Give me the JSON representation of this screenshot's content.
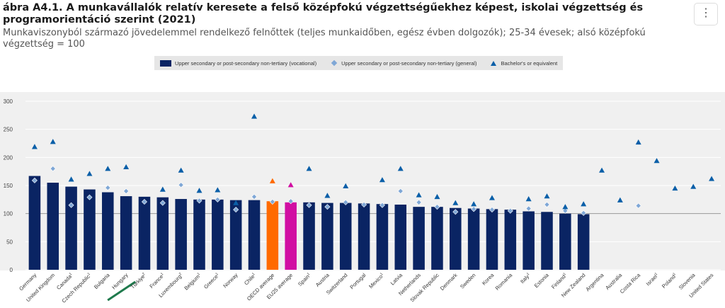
{
  "title": "ábra A4.1. A munkavállalók relatív keresete a felső középfokú végzettségűekhez képest, iskolai végzettség és programorientáció szerint (2021)",
  "subtitle": "Munkaviszonyból származó jövedelemmel rendelkező felnőttek (teljes munkaidőben, egész évben dolgozók); 25-34 évesek; alsó középfokú végzettség = 100",
  "menu_icon": "⋮",
  "chart_data": {
    "type": "bar",
    "ylim": [
      0,
      300
    ],
    "yticks": [
      0,
      50,
      100,
      150,
      200,
      250,
      300
    ],
    "reference_line": 100,
    "legend_position": "top",
    "highlight_colors": {
      "OECD average": "#ff6a00",
      "EU25 average": "#d10ea2"
    },
    "legend": [
      {
        "key": "voc",
        "label": "Upper secondary or post-secondary non-tertiary (vocational)",
        "color": "#0a2463",
        "marker": "bar"
      },
      {
        "key": "gen",
        "label": "Upper secondary or post-secondary non-tertiary (general)",
        "color": "#7fa7d6",
        "marker": "diamond"
      },
      {
        "key": "bach",
        "label": "Bachelor's or equivalent",
        "color": "#0a5fa8",
        "marker": "triangle"
      }
    ],
    "categories": [
      {
        "label": "Germany",
        "sup": "",
        "voc": 167,
        "gen": 159,
        "bach": 219
      },
      {
        "label": "United Kingdom",
        "sup": "",
        "voc": 155,
        "gen": 180,
        "bach": 228
      },
      {
        "label": "Canada",
        "sup": "1",
        "voc": 148,
        "gen": 115,
        "bach": 161
      },
      {
        "label": "Czech Republic",
        "sup": "1",
        "voc": 143,
        "gen": 129,
        "bach": 171
      },
      {
        "label": "Bulgaria",
        "sup": "",
        "voc": 138,
        "gen": 146,
        "bach": 180
      },
      {
        "label": "Hungary",
        "sup": "",
        "voc": 131,
        "gen": 140,
        "bach": 183
      },
      {
        "label": "Türkiye",
        "sup": "2",
        "voc": 130,
        "gen": 121,
        "bach": null
      },
      {
        "label": "France",
        "sup": "1",
        "voc": 129,
        "gen": 119,
        "bach": 143
      },
      {
        "label": "Luxembourg",
        "sup": "2",
        "voc": 126,
        "gen": 151,
        "bach": 177
      },
      {
        "label": "Belgium",
        "sup": "1",
        "voc": 125,
        "gen": 123,
        "bach": 141
      },
      {
        "label": "Greece",
        "sup": "1",
        "voc": 125,
        "gen": 125,
        "bach": 142
      },
      {
        "label": "Norway",
        "sup": "",
        "voc": 124,
        "gen": 107,
        "bach": 119
      },
      {
        "label": "Chile",
        "sup": "1",
        "voc": 124,
        "gen": 130,
        "bach": 273
      },
      {
        "label": "OECD average",
        "sup": "",
        "voc": 122,
        "gen": 121,
        "bach": 158
      },
      {
        "label": "EU25 average",
        "sup": "",
        "voc": 120,
        "gen": 122,
        "bach": 151
      },
      {
        "label": "Spain",
        "sup": "1",
        "voc": 120,
        "gen": 115,
        "bach": 180
      },
      {
        "label": "Austria",
        "sup": "",
        "voc": 119,
        "gen": 112,
        "bach": 132
      },
      {
        "label": "Switzerland",
        "sup": "",
        "voc": 119,
        "gen": 120,
        "bach": 149
      },
      {
        "label": "Portugal",
        "sup": "",
        "voc": 118,
        "gen": 116,
        "bach": null
      },
      {
        "label": "Mexico",
        "sup": "1",
        "voc": 117,
        "gen": 115,
        "bach": 160
      },
      {
        "label": "Latvia",
        "sup": "",
        "voc": 116,
        "gen": 140,
        "bach": 180
      },
      {
        "label": "Netherlands",
        "sup": "",
        "voc": 112,
        "gen": 120,
        "bach": 133
      },
      {
        "label": "Slovak Republic",
        "sup": "",
        "voc": 112,
        "gen": 112,
        "bach": 130
      },
      {
        "label": "Denmark",
        "sup": "",
        "voc": 110,
        "gen": 103,
        "bach": 119
      },
      {
        "label": "Sweden",
        "sup": "",
        "voc": 109,
        "gen": 108,
        "bach": 117
      },
      {
        "label": "Korea",
        "sup": "",
        "voc": 108,
        "gen": 107,
        "bach": 128
      },
      {
        "label": "Romania",
        "sup": "",
        "voc": 107,
        "gen": 105,
        "bach": null
      },
      {
        "label": "Italy",
        "sup": "1",
        "voc": 104,
        "gen": 109,
        "bach": 126
      },
      {
        "label": "Estonia",
        "sup": "",
        "voc": 103,
        "gen": 116,
        "bach": 131
      },
      {
        "label": "Finland",
        "sup": "1",
        "voc": 100,
        "gen": 105,
        "bach": 112
      },
      {
        "label": "New Zealand",
        "sup": "",
        "voc": 99,
        "gen": 101,
        "bach": 117
      },
      {
        "label": "Argentina",
        "sup": "",
        "voc": null,
        "gen": null,
        "bach": 177
      },
      {
        "label": "Australia",
        "sup": "",
        "voc": null,
        "gen": null,
        "bach": 124
      },
      {
        "label": "Costa Rica",
        "sup": "",
        "voc": null,
        "gen": 114,
        "bach": 227
      },
      {
        "label": "Israel",
        "sup": "1",
        "voc": null,
        "gen": null,
        "bach": 194
      },
      {
        "label": "Poland",
        "sup": "1",
        "voc": null,
        "gen": null,
        "bach": 145
      },
      {
        "label": "Slovenia",
        "sup": "",
        "voc": null,
        "gen": null,
        "bach": 148
      },
      {
        "label": "United States",
        "sup": "",
        "voc": null,
        "gen": null,
        "bach": 162
      }
    ],
    "highlighted_category": "Hungary"
  }
}
